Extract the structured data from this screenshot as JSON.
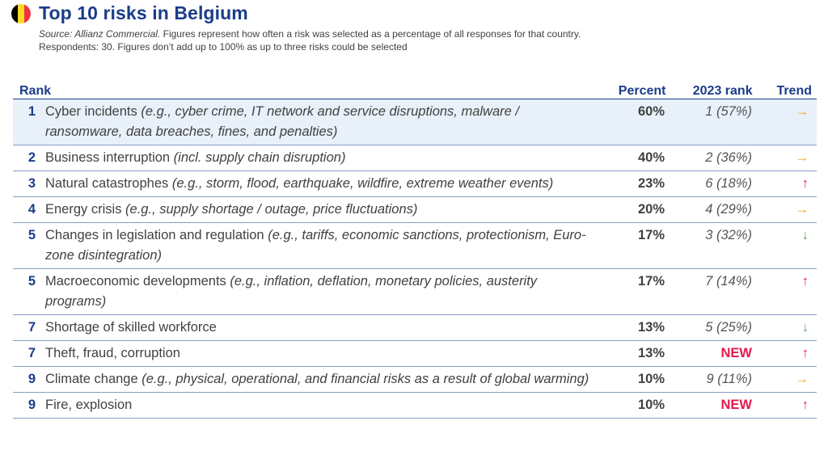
{
  "header": {
    "title": "Top 10 risks in Belgium",
    "source_label": "Source: Allianz Commercial.",
    "source_text": " Figures represent how often a risk was selected as a percentage of all responses for that country.",
    "respondents_text": "Respondents: 30. Figures don’t add up to 100% as up to three risks could be selected",
    "flag_colors": [
      "#000000",
      "#FDDA24",
      "#EF3340"
    ]
  },
  "chart_data": {
    "type": "table",
    "title": "Top 10 risks in Belgium",
    "columns": {
      "rank": "Rank",
      "percent": "Percent",
      "prev_rank": "2023 rank",
      "trend": "Trend"
    },
    "rows": [
      {
        "rank": "1",
        "risk": "Cyber incidents",
        "detail": " (e.g., cyber crime, IT network and service disruptions, malware / ransomware, data breaches, fines, and penalties)",
        "percent": "60%",
        "prev": "1 (57%)",
        "is_new": false,
        "trend": "→",
        "trend_dir": "same"
      },
      {
        "rank": "2",
        "risk": "Business interruption",
        "detail": " (incl. supply chain disruption)",
        "percent": "40%",
        "prev": "2 (36%)",
        "is_new": false,
        "trend": "→",
        "trend_dir": "same"
      },
      {
        "rank": "3",
        "risk": "Natural catastrophes",
        "detail": " (e.g., storm, flood, earthquake, wildfire, extreme weather events)",
        "percent": "23%",
        "prev": "6 (18%)",
        "is_new": false,
        "trend": "↑",
        "trend_dir": "up"
      },
      {
        "rank": "4",
        "risk": "Energy crisis",
        "detail": " (e.g., supply shortage / outage, price fluctuations)",
        "percent": "20%",
        "prev": "4 (29%)",
        "is_new": false,
        "trend": "→",
        "trend_dir": "same"
      },
      {
        "rank": "5",
        "risk": "Changes in legislation and regulation",
        "detail": " (e.g., tariffs, economic sanctions, protectionism, Euro-zone disintegration)",
        "percent": "17%",
        "prev": "3 (32%)",
        "is_new": false,
        "trend": "↓",
        "trend_dir": "down"
      },
      {
        "rank": "5",
        "risk": "Macroeconomic developments",
        "detail": " (e.g., inflation, deflation, monetary policies, austerity programs)",
        "percent": "17%",
        "prev": "7 (14%)",
        "is_new": false,
        "trend": "↑",
        "trend_dir": "up"
      },
      {
        "rank": "7",
        "risk": "Shortage of skilled workforce",
        "detail": "",
        "percent": "13%",
        "prev": "5 (25%)",
        "is_new": false,
        "trend": "↓",
        "trend_dir": "down"
      },
      {
        "rank": "7",
        "risk": "Theft, fraud, corruption",
        "detail": "",
        "percent": "13%",
        "prev": "NEW",
        "is_new": true,
        "trend": "↑",
        "trend_dir": "up"
      },
      {
        "rank": "9",
        "risk": "Climate change",
        "detail": " (e.g., physical, operational, and financial risks as a result of global warming)",
        "percent": "10%",
        "prev": "9 (11%)",
        "is_new": false,
        "trend": "→",
        "trend_dir": "same"
      },
      {
        "rank": "9",
        "risk": "Fire, explosion",
        "detail": "",
        "percent": "10%",
        "prev": "NEW",
        "is_new": true,
        "trend": "↑",
        "trend_dir": "up"
      }
    ]
  }
}
